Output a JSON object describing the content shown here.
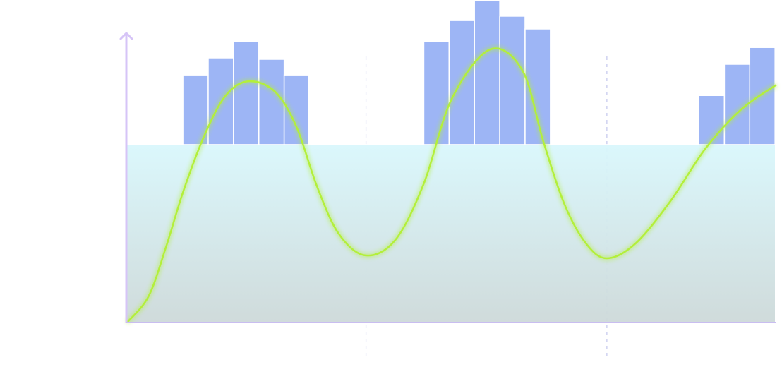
{
  "chart_data": {
    "type": "combo",
    "xlim": [
      0,
      100
    ],
    "ylim": [
      0,
      111.5
    ],
    "level": 61.5,
    "xgrid": [
      36.8,
      73.9
    ],
    "bar_color": "#9db5f5",
    "bar_groups": [
      {
        "bins": [
          8.6,
          12.5,
          16.4,
          20.3,
          24.2,
          28.0
        ],
        "values": [
          85.6,
          91.5,
          97.1,
          91.0,
          85.6
        ]
      },
      {
        "bins": [
          45.7,
          49.6,
          53.5,
          57.4,
          61.3,
          65.2
        ],
        "values": [
          97.1,
          104.4,
          111.2,
          105.9,
          101.5
        ]
      },
      {
        "bins": [
          88.0,
          92.0,
          95.9,
          99.8
        ],
        "values": [
          78.5,
          89.3,
          95.1
        ]
      }
    ],
    "series": [
      {
        "color": "#b3ef3a",
        "x": [
          0,
          3.3,
          6.0,
          8.7,
          12.0,
          15.2,
          18.7,
          22.8,
          26.1,
          29.3,
          32.6,
          36.7,
          41.3,
          45.7,
          50.0,
          55.9,
          60.9,
          64.1,
          67.4,
          70.7,
          73.9,
          78.3,
          83.7,
          89.1,
          94.6,
          100
        ],
        "values": [
          0,
          9.0,
          26.1,
          45.6,
          65.1,
          78.5,
          83.4,
          79.8,
          67.6,
          46.8,
          30.7,
          23.2,
          28.5,
          48.0,
          77.3,
          94.4,
          87.1,
          62.7,
          40.7,
          27.3,
          22.2,
          27.3,
          42.0,
          60.2,
          73.7,
          82.2
        ]
      }
    ]
  }
}
